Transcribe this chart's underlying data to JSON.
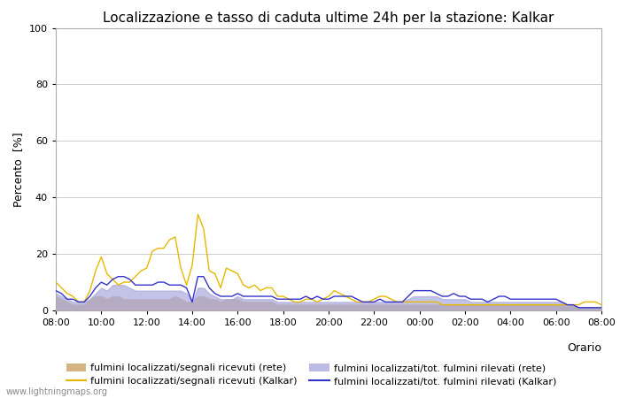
{
  "title": "Localizzazione e tasso di caduta ultime 24h per la stazione: Kalkar",
  "ylabel": "Percento  [%]",
  "xlabel": "Orario",
  "ylim": [
    0,
    100
  ],
  "yticks": [
    0,
    20,
    40,
    60,
    80,
    100
  ],
  "background_color": "#ffffff",
  "plot_bg_color": "#ffffff",
  "grid_color": "#cccccc",
  "watermark": "www.lightningmaps.org",
  "x_labels": [
    "08:00",
    "10:00",
    "12:00",
    "14:00",
    "16:00",
    "18:00",
    "20:00",
    "22:00",
    "00:00",
    "02:00",
    "04:00",
    "06:00",
    "08:00"
  ],
  "orange_line": [
    10,
    8,
    6,
    5,
    3,
    3,
    7,
    14,
    19,
    13,
    11,
    9,
    10,
    10,
    12,
    14,
    15,
    21,
    22,
    22,
    25,
    26,
    15,
    9,
    16,
    34,
    29,
    14,
    13,
    8,
    15,
    14,
    13,
    9,
    8,
    9,
    7,
    8,
    8,
    5,
    5,
    4,
    3,
    3,
    4,
    4,
    3,
    4,
    5,
    7,
    6,
    5,
    4,
    3,
    3,
    3,
    4,
    5,
    5,
    4,
    3,
    3,
    3,
    3,
    3,
    3,
    3,
    3,
    2,
    2,
    2,
    2,
    2,
    2,
    2,
    2,
    2,
    2,
    2,
    2,
    2,
    2,
    2,
    2,
    2,
    2,
    2,
    2,
    2,
    2,
    2,
    2,
    2,
    3,
    3,
    3,
    2
  ],
  "blue_line": [
    7,
    6,
    4,
    4,
    3,
    3,
    5,
    8,
    10,
    9,
    11,
    12,
    12,
    11,
    9,
    9,
    9,
    9,
    10,
    10,
    9,
    9,
    9,
    8,
    3,
    12,
    12,
    8,
    6,
    5,
    5,
    5,
    6,
    5,
    5,
    5,
    5,
    5,
    5,
    4,
    4,
    4,
    4,
    4,
    5,
    4,
    5,
    4,
    4,
    5,
    5,
    5,
    5,
    4,
    3,
    3,
    3,
    4,
    3,
    3,
    3,
    3,
    5,
    7,
    7,
    7,
    7,
    6,
    5,
    5,
    6,
    5,
    5,
    4,
    4,
    4,
    3,
    4,
    5,
    5,
    4,
    4,
    4,
    4,
    4,
    4,
    4,
    4,
    4,
    3,
    2,
    2,
    1,
    1,
    1,
    1,
    1
  ],
  "orange_fill": [
    5,
    4,
    3,
    2,
    2,
    2,
    4,
    5,
    5,
    4,
    5,
    5,
    4,
    4,
    4,
    4,
    4,
    4,
    4,
    4,
    4,
    5,
    4,
    3,
    3,
    5,
    5,
    4,
    4,
    3,
    4,
    4,
    4,
    3,
    3,
    3,
    3,
    3,
    3,
    2,
    2,
    2,
    2,
    2,
    2,
    2,
    2,
    2,
    2,
    2,
    2,
    2,
    2,
    2,
    2,
    2,
    2,
    2,
    2,
    2,
    2,
    2,
    2,
    2,
    2,
    2,
    2,
    2,
    2,
    2,
    2,
    2,
    2,
    2,
    2,
    2,
    2,
    2,
    2,
    2,
    2,
    2,
    2,
    2,
    2,
    2,
    2,
    2,
    2,
    2,
    2,
    2,
    1,
    1,
    1,
    1,
    1
  ],
  "blue_fill": [
    6,
    5,
    4,
    3,
    3,
    3,
    4,
    6,
    8,
    7,
    9,
    9,
    9,
    8,
    7,
    7,
    7,
    7,
    7,
    7,
    7,
    7,
    7,
    6,
    3,
    8,
    8,
    6,
    5,
    4,
    4,
    4,
    5,
    4,
    4,
    4,
    4,
    4,
    4,
    3,
    3,
    3,
    3,
    3,
    3,
    3,
    3,
    3,
    3,
    3,
    3,
    3,
    3,
    3,
    3,
    3,
    3,
    3,
    3,
    3,
    3,
    3,
    4,
    5,
    5,
    5,
    5,
    5,
    4,
    4,
    4,
    4,
    4,
    3,
    3,
    3,
    3,
    3,
    3,
    3,
    3,
    3,
    3,
    3,
    3,
    3,
    3,
    3,
    3,
    3,
    2,
    2,
    1,
    1,
    1,
    1,
    1
  ],
  "orange_line_color": "#e6b800",
  "blue_line_color": "#3333cc",
  "orange_fill_color": "#d4b483",
  "blue_fill_color": "#aaaadd",
  "legend_labels": [
    "fulmini localizzati/segnali ricevuti (rete)",
    "fulmini localizzati/segnali ricevuti (Kalkar)",
    "fulmini localizzati/tot. fulmini rilevati (rete)",
    "fulmini localizzati/tot. fulmini rilevati (Kalkar)"
  ],
  "title_fontsize": 11,
  "axis_fontsize": 9,
  "tick_fontsize": 8,
  "legend_fontsize": 8,
  "watermark_fontsize": 7
}
